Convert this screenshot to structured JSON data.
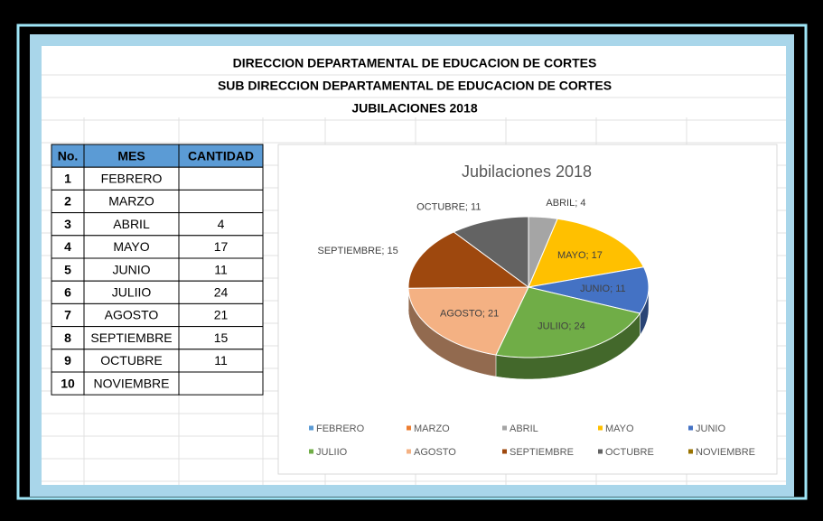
{
  "header": {
    "lines": [
      "DIRECCION DEPARTAMENTAL DE EDUCACION DE CORTES",
      "SUB DIRECCION DEPARTAMENTAL DE EDUCACION DE CORTES",
      "JUBILACIONES 2018"
    ]
  },
  "table": {
    "headers": [
      "No.",
      "MES",
      "CANTIDAD"
    ],
    "numbers": [
      1,
      2,
      3,
      4,
      5,
      6,
      7,
      8,
      9,
      10
    ]
  },
  "chart_data": {
    "type": "pie",
    "title": "Jubilaciones 2018",
    "categories": [
      "FEBRERO",
      "MARZO",
      "ABRIL",
      "MAYO",
      "JUNIO",
      "JULIIO",
      "AGOSTO",
      "SEPTIEMBRE",
      "OCTUBRE",
      "NOVIEMBRE"
    ],
    "values": [
      null,
      null,
      4,
      17,
      11,
      24,
      21,
      15,
      11,
      null
    ],
    "value_labels": [
      null,
      null,
      "ABRIL; 4",
      "MAYO; 17",
      "JUNIO; 11",
      "JULIIO; 24",
      "AGOSTO; 21",
      "SEPTIEMBRE; 15",
      "OCTUBRE; 11",
      null
    ],
    "colors": [
      "#5b9bd5",
      "#ed7d31",
      "#a5a5a5",
      "#ffc000",
      "#4472c4",
      "#70ad47",
      "#f4b183",
      "#9e480e",
      "#636363",
      "#997300"
    ],
    "legend": "bottom"
  }
}
